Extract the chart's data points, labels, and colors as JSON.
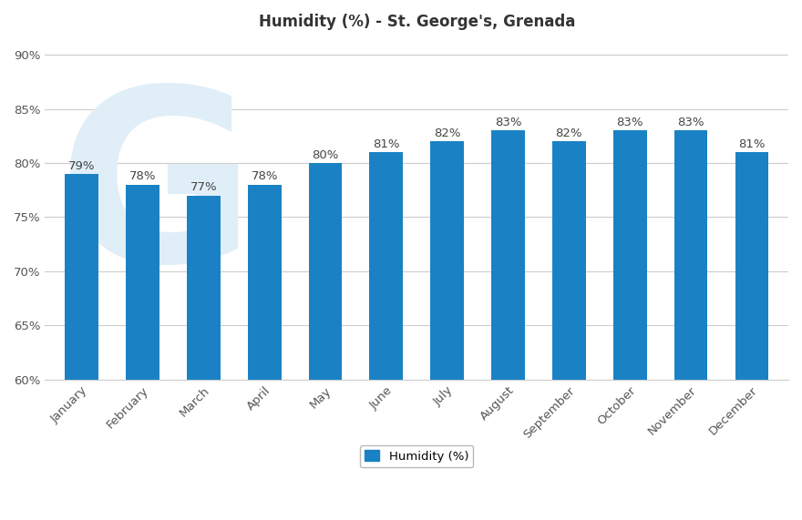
{
  "title": "Humidity (%) - St. George's, Grenada",
  "categories": [
    "January",
    "February",
    "March",
    "April",
    "May",
    "June",
    "July",
    "August",
    "September",
    "October",
    "November",
    "December"
  ],
  "values": [
    79,
    78,
    77,
    78,
    80,
    81,
    82,
    83,
    82,
    83,
    83,
    81
  ],
  "bar_color": "#1a82c4",
  "background_color": "#ffffff",
  "ylim_min": 60,
  "ylim_max": 91,
  "yticks": [
    60,
    65,
    70,
    75,
    80,
    85,
    90
  ],
  "title_fontsize": 12,
  "tick_fontsize": 9.5,
  "label_fontsize": 9.5,
  "legend_label": "Humidity (%)",
  "grid_color": "#cccccc",
  "watermark_text": "G",
  "watermark_color": "#e0eef8"
}
